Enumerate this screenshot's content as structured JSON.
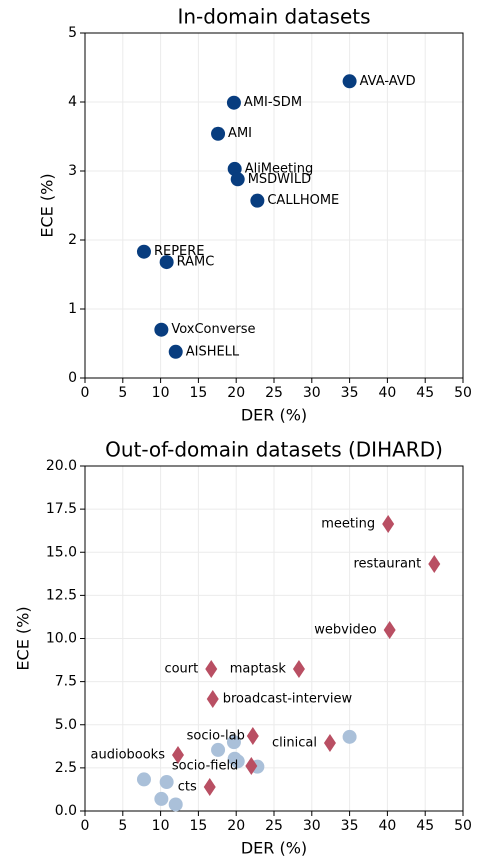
{
  "chart_data": [
    {
      "type": "scatter",
      "title": "In-domain datasets",
      "x_label": "DER (%)",
      "y_label": "ECE (%)",
      "xlim": [
        0,
        50
      ],
      "ylim": [
        0,
        5
      ],
      "xticks": [
        0,
        5,
        10,
        15,
        20,
        25,
        30,
        35,
        40,
        45,
        50
      ],
      "yticks": [
        0,
        1,
        2,
        3,
        4,
        5
      ],
      "grid": true,
      "series": [
        {
          "color": "#083d7f",
          "marker": "circle",
          "labels": [
            "AVA-AVD",
            "AMI-SDM",
            "AMI",
            "AliMeeting",
            "MSDWILD",
            "CALLHOME",
            "REPERE",
            "RAMC",
            "VoxConverse",
            "AISHELL"
          ],
          "x": [
            35.0,
            19.7,
            17.6,
            19.8,
            20.2,
            22.8,
            7.8,
            10.8,
            10.1,
            12.0
          ],
          "y": [
            4.3,
            3.99,
            3.54,
            3.03,
            2.88,
            2.57,
            1.83,
            1.68,
            0.7,
            0.38
          ]
        }
      ]
    },
    {
      "type": "scatter",
      "title": "Out-of-domain datasets (DIHARD)",
      "x_label": "DER (%)",
      "y_label": "ECE (%)",
      "xlim": [
        0,
        50
      ],
      "ylim": [
        0,
        20
      ],
      "xticks": [
        0,
        5,
        10,
        15,
        20,
        25,
        30,
        35,
        40,
        45,
        50
      ],
      "yticks": [
        {
          "value": 0,
          "label": "0.0"
        },
        {
          "value": 2.5,
          "label": "2.5"
        },
        {
          "value": 5,
          "label": "5.0"
        },
        {
          "value": 7.5,
          "label": "7.5"
        },
        {
          "value": 10,
          "label": "10.0"
        },
        {
          "value": 12.5,
          "label": "12.5"
        },
        {
          "value": 15,
          "label": "15.0"
        },
        {
          "value": 17.5,
          "label": "17.5"
        },
        {
          "value": 20,
          "label": "20.0"
        }
      ],
      "grid": true,
      "series": [
        {
          "color": "#aac0d9",
          "marker": "circle",
          "x": [
            35.0,
            19.7,
            17.6,
            19.8,
            20.2,
            22.8,
            7.8,
            10.8,
            10.1,
            12.0
          ],
          "y": [
            4.3,
            3.99,
            3.54,
            3.03,
            2.88,
            2.57,
            1.83,
            1.68,
            0.7,
            0.38
          ]
        },
        {
          "color": "#b94f63",
          "marker": "diamond",
          "labels": [
            "meeting",
            "restaurant",
            "webvideo",
            "court",
            "maptask",
            "broadcast-interview",
            "socio-lab",
            "clinical",
            "audiobooks",
            "socio-field",
            "cts"
          ],
          "x": [
            40.1,
            46.2,
            40.3,
            16.7,
            28.3,
            16.9,
            22.2,
            32.4,
            12.3,
            22.0,
            16.5
          ],
          "y": [
            16.64,
            14.32,
            10.49,
            8.23,
            8.23,
            6.49,
            4.35,
            3.94,
            3.25,
            2.61,
            1.39
          ]
        }
      ]
    }
  ]
}
